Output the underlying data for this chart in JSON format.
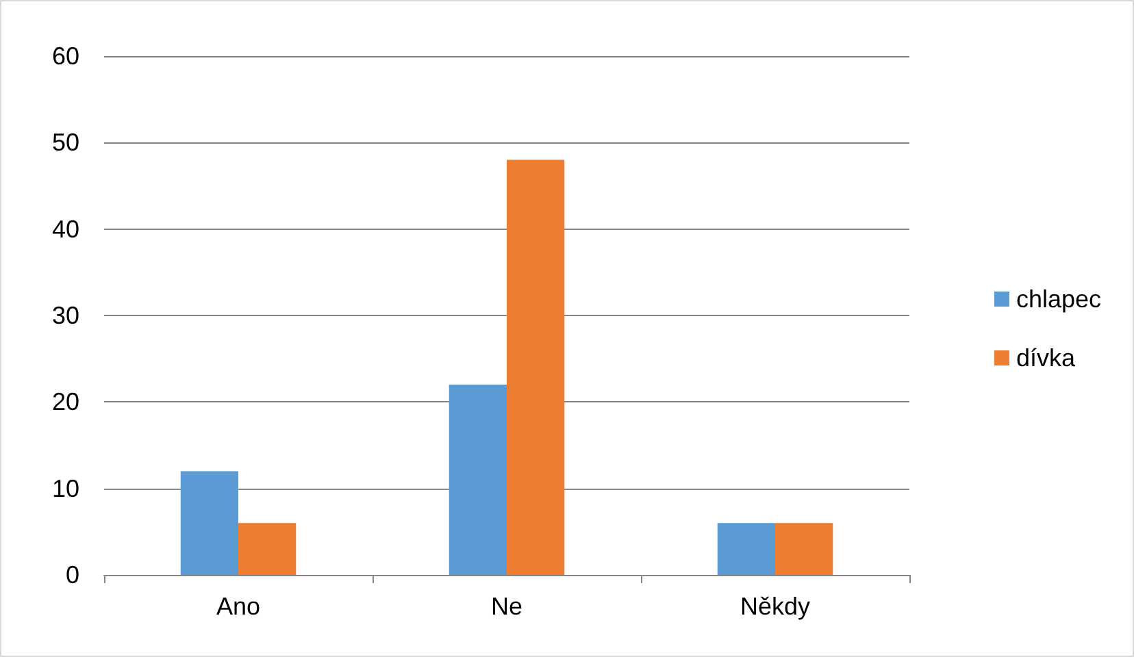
{
  "chart_data": {
    "type": "bar",
    "categories": [
      "Ano",
      "Ne",
      "Někdy"
    ],
    "series": [
      {
        "name": "chlapec",
        "color": "#5b9bd5",
        "values": [
          12,
          22,
          6
        ]
      },
      {
        "name": "dívka",
        "color": "#ed7d31",
        "values": [
          6,
          48,
          6
        ]
      }
    ],
    "ylim": [
      0,
      60
    ],
    "yticks": [
      0,
      10,
      20,
      30,
      40,
      50,
      60
    ],
    "grid": "y",
    "legend": "right"
  }
}
